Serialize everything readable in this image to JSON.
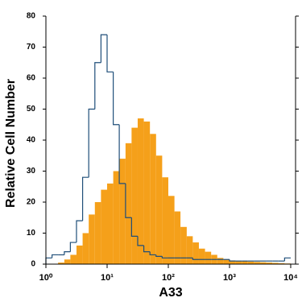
{
  "chart_data": {
    "type": "histogram",
    "xlabel": "A33",
    "ylabel": "Relative Cell Number",
    "xscale": "log",
    "xlim": [
      1,
      12000
    ],
    "ylim": [
      0,
      80
    ],
    "xticks": [
      {
        "value": 1,
        "label": "10⁰"
      },
      {
        "value": 10,
        "label": "10¹"
      },
      {
        "value": 100,
        "label": "10²"
      },
      {
        "value": 1000,
        "label": "10³"
      },
      {
        "value": 10000,
        "label": "10⁴"
      }
    ],
    "yticks": [
      0,
      10,
      20,
      30,
      40,
      50,
      60,
      70,
      80
    ],
    "bins": [
      1,
      1.26,
      1.58,
      2,
      2.51,
      3.16,
      3.98,
      5.01,
      6.31,
      7.94,
      10,
      12.6,
      15.8,
      20,
      25.1,
      31.6,
      39.8,
      50.1,
      63.1,
      79.4,
      100,
      126,
      158,
      200,
      251,
      316,
      398,
      501,
      631,
      794,
      1000,
      1259,
      1585,
      1995,
      2512,
      3162,
      3981,
      5012,
      6310,
      7943,
      10000
    ],
    "series": [
      {
        "color": "#f5a01a",
        "fill": true,
        "values": [
          0,
          0,
          0.5,
          1.5,
          3,
          6,
          10,
          16,
          20,
          24,
          26,
          30,
          34,
          39,
          44,
          47,
          46,
          42,
          35,
          28,
          22,
          17,
          12,
          9,
          7,
          5,
          4,
          3,
          2,
          1.5,
          1.2,
          1,
          1,
          0.8,
          0.7,
          0.6,
          0.5,
          0.4,
          0.3,
          0.2
        ]
      },
      {
        "color": "#1f4e79",
        "fill": false,
        "values": [
          2,
          3,
          3,
          4,
          7,
          14,
          28,
          50,
          65,
          74,
          62,
          45,
          26,
          15,
          9,
          6,
          4,
          3,
          2.5,
          2,
          2,
          2,
          2,
          2,
          1.5,
          1.5,
          1.5,
          1.5,
          1.5,
          1.5,
          1,
          1,
          1,
          1,
          1,
          1,
          1,
          1,
          1,
          2
        ]
      }
    ]
  }
}
